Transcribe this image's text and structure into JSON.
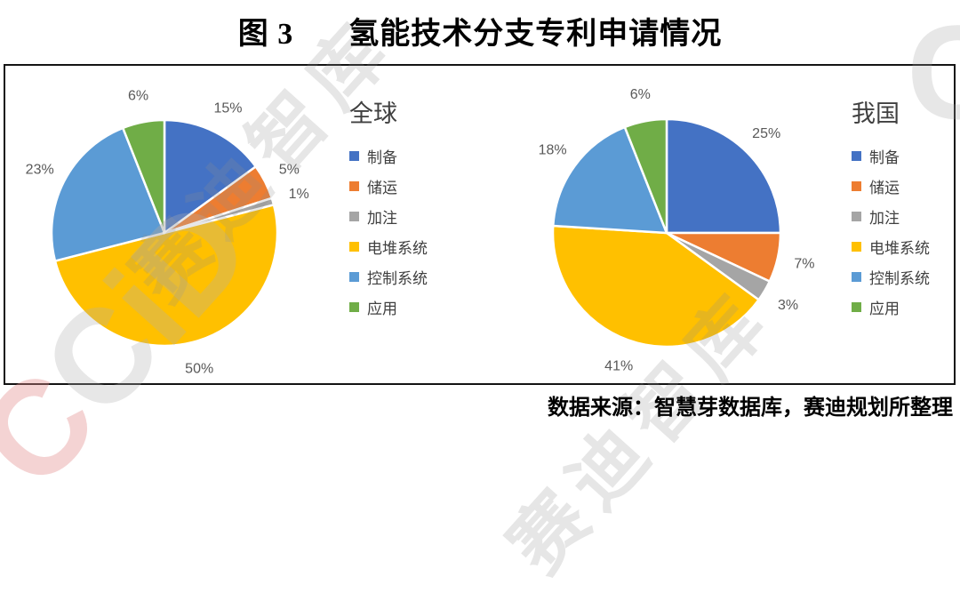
{
  "header": {
    "figure_label": "图 3",
    "title": "氢能技术分支专利申请情况"
  },
  "footer": {
    "source": "数据来源：智慧芽数据库，赛迪规划所整理"
  },
  "watermark": {
    "diagonal_text": "赛迪智库",
    "logo_text_first": "C",
    "logo_text_rest": "CiD",
    "corner_letter": "C"
  },
  "colors": {
    "blue": "#4472c4",
    "orange": "#ed7d31",
    "gray": "#a5a5a5",
    "yellow": "#ffc000",
    "light_blue": "#5b9bd5",
    "green": "#70ad47",
    "percent_label": "#595959",
    "legend_text": "#404040",
    "panel_border": "#141414"
  },
  "chart_data": [
    {
      "type": "pie",
      "title": "全球",
      "categories": [
        "制备",
        "储运",
        "加注",
        "电堆系统",
        "控制系统",
        "应用"
      ],
      "values": [
        15,
        5,
        1,
        50,
        23,
        6
      ],
      "labels": [
        "15%",
        "5%",
        "1%",
        "50%",
        "23%",
        "6%"
      ],
      "unit": "%",
      "colors": [
        "#4472c4",
        "#ed7d31",
        "#a5a5a5",
        "#ffc000",
        "#5b9bd5",
        "#70ad47"
      ],
      "start_angle_deg": 0,
      "direction": "clockwise",
      "legend_position": "right"
    },
    {
      "type": "pie",
      "title": "我国",
      "categories": [
        "制备",
        "储运",
        "加注",
        "电堆系统",
        "控制系统",
        "应用"
      ],
      "values": [
        25,
        7,
        3,
        41,
        18,
        6
      ],
      "labels": [
        "25%",
        "7%",
        "3%",
        "41%",
        "18%",
        "6%"
      ],
      "unit": "%",
      "colors": [
        "#4472c4",
        "#ed7d31",
        "#a5a5a5",
        "#ffc000",
        "#5b9bd5",
        "#70ad47"
      ],
      "start_angle_deg": 0,
      "direction": "clockwise",
      "legend_position": "right"
    }
  ]
}
